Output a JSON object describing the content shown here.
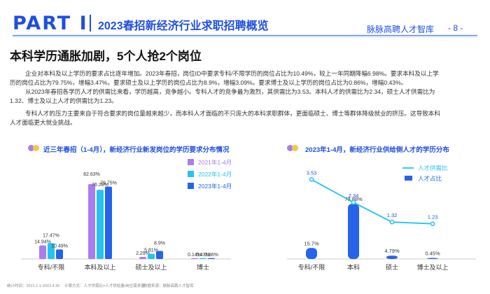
{
  "header": {
    "part_label": "PART Ⅰ",
    "title": "2023春招新经济行业求职招聘概览",
    "brand": "脉脉高聘人才智库",
    "page": "- 8 -"
  },
  "section_title": "本科学历通胀加剧，5个人抢2个岗位",
  "paragraphs": [
    "企业对本科及以上学历的要求占比逐年增加。2023年春招，岗位ID中要求专科/不限学历的岗位占比为10.49%，较上一年同期降幅6.98%。要求本科及以上学",
    "历的岗位占比为79.75%，增幅3.47%。要求硕士及以上学历的岗位占比为8.9%，增幅3.09%。要求博士及以上学历的岗位占比为0.86%，增幅0.43%。",
    "从2023年春招各学历人才的供需比来看，学历越高，竞争越小。专科人才的竞争最为激烈，其供需比为3.53。本科人才的供需比为2.34，硕士人才供需比为",
    "1.32、博士及以上人才的供需比为1.23。",
    "专科人才的压力主要来自于符合要求的岗位量越来越少，而本科人才面临的不只庞大的本科求职群体，更面临硕士、博士等群体降级就业的挤压。这导致本科",
    "人才面临更大就业挑战。"
  ],
  "footer": {
    "time": "统计时间：2021.1.1-2023.4.30",
    "method": "计算方式：人才供需比=人才供给量/岗位需求量",
    "source": "数据来源：脉脉高聘人才智库"
  },
  "chart_data": [
    {
      "type": "bar",
      "title": "近三年春招（1-4月），新经济行业新发岗位的学历要求分布情况",
      "categories": [
        "专科/不限",
        "本科及以上",
        "硕士及以上",
        "博士"
      ],
      "series": [
        {
          "name": "2021年1-4月",
          "color": "#a97cf2",
          "values": [
            14.94,
            82.63,
            2.29,
            0.14
          ],
          "labels": [
            "14.94%",
            "82.63%",
            "2.29%",
            "0.14%"
          ]
        },
        {
          "name": "2022年1-4月",
          "color": "#25c4f0",
          "values": [
            17.47,
            76.28,
            5.81,
            0.43
          ],
          "labels": [
            "17.47%",
            "76.28%",
            "5.81%",
            "0.43%"
          ]
        },
        {
          "name": "2023年1-4月",
          "color": "#2563eb",
          "values": [
            10.49,
            79.75,
            8.9,
            0.86
          ],
          "labels": [
            "10.49%",
            "79.75%",
            "8.9%",
            "0.86%"
          ]
        }
      ],
      "ylim": [
        0,
        90
      ]
    },
    {
      "type": "bar+line",
      "title": "2023年1-4月，新经济行业供给侧人才的学历分布",
      "categories": [
        "专科/不限",
        "本科",
        "硕士",
        "博士及以上"
      ],
      "bars": {
        "name": "人才占比",
        "color": "#2563eb",
        "values": [
          15.7,
          78.88,
          4.79,
          0.45
        ],
        "labels": [
          "15.7%",
          "78.88%",
          "4.79%",
          "0.45%"
        ]
      },
      "line": {
        "name": "人才供需比",
        "color": "#25c4f0",
        "values": [
          3.53,
          2.34,
          1.32,
          1.23
        ],
        "labels": [
          "3.53",
          "2.34",
          "1.32",
          "1.23"
        ]
      }
    }
  ]
}
